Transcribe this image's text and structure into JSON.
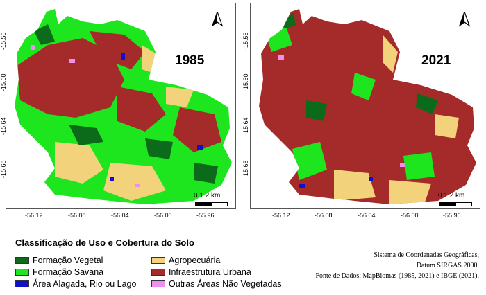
{
  "maps": [
    {
      "year": "1985"
    },
    {
      "year": "2021"
    }
  ],
  "axes": {
    "y_ticks": [
      "-15.56",
      "-15.60",
      "-15.64",
      "-15.68"
    ],
    "x_ticks": [
      "-56.12",
      "-56.08",
      "-56.04",
      "-56.00",
      "-55.96"
    ]
  },
  "scalebar": {
    "label": "0  1  2 km"
  },
  "legend": {
    "title": "Classificação de Uso e Cobertura do Solo",
    "items": [
      {
        "label": "Formação Vegetal",
        "color": "#0b6b1a"
      },
      {
        "label": "Formação Savana",
        "color": "#1ee61e"
      },
      {
        "label": "Área Alagada, Rio ou Lago",
        "color": "#1010cc"
      },
      {
        "label": "Agropecuária",
        "color": "#f2d27a"
      },
      {
        "label": "Infraestrutura Urbana",
        "color": "#a52a2a"
      },
      {
        "label": "Outras Áreas Não Vegetadas",
        "color": "#f08ef0"
      }
    ]
  },
  "source": {
    "line1": "Sistema de Coordenadas Geográficas,",
    "line2": "Datum SIRGAS 2000.",
    "line3": "Fonte de Dados: MapBiomas (1985, 2021) e IBGE (2021)."
  },
  "icons": [
    "north-arrow-icon"
  ]
}
